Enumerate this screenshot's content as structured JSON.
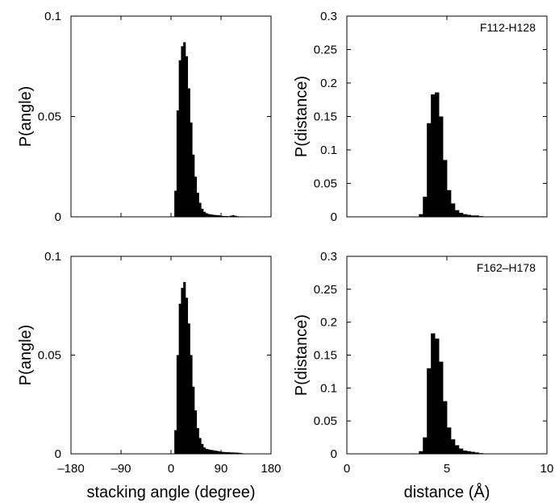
{
  "chart_data": [
    {
      "type": "bar",
      "panel": "top-left",
      "title": "",
      "annotation": "",
      "xlabel": "",
      "ylabel": "P(angle)",
      "xlim": [
        -180,
        180
      ],
      "ylim": [
        0,
        0.1
      ],
      "xticks": [],
      "yticks": [
        0,
        0.05,
        0.1
      ],
      "ytick_labels": [
        "0",
        "0.05",
        "0.1"
      ],
      "bin_width": 4,
      "x": [
        8,
        12,
        16,
        20,
        24,
        28,
        32,
        36,
        40,
        44,
        48,
        52,
        56,
        60,
        64,
        68,
        72,
        76,
        80,
        84,
        88,
        92,
        96,
        100,
        104,
        108,
        112,
        116,
        120,
        124,
        128
      ],
      "values": [
        0.013,
        0.053,
        0.078,
        0.085,
        0.087,
        0.08,
        0.064,
        0.047,
        0.031,
        0.02,
        0.012,
        0.007,
        0.004,
        0.0025,
        0.0018,
        0.0014,
        0.0012,
        0.001,
        0.0009,
        0.0008,
        0.0007,
        0.0005,
        0.0004,
        0.0004,
        0.0003,
        0.0006,
        0.0008,
        0.0005,
        0.0003,
        0.0002,
        0.0001
      ]
    },
    {
      "type": "bar",
      "panel": "top-right",
      "title": "",
      "annotation": "F112-H128",
      "xlabel": "",
      "ylabel": "P(distance)",
      "xlim": [
        0,
        10
      ],
      "ylim": [
        0,
        0.3
      ],
      "xticks": [],
      "yticks": [
        0,
        0.05,
        0.1,
        0.15,
        0.2,
        0.25,
        0.3
      ],
      "ytick_labels": [
        "0",
        "0.05",
        "0.1",
        "0.15",
        "0.2",
        "0.25",
        "0.3"
      ],
      "bin_width": 0.2,
      "x": [
        3.7,
        3.9,
        4.1,
        4.3,
        4.5,
        4.7,
        4.9,
        5.1,
        5.3,
        5.5,
        5.7,
        5.9,
        6.1,
        6.3,
        6.5,
        6.7
      ],
      "values": [
        0.004,
        0.03,
        0.14,
        0.183,
        0.186,
        0.15,
        0.085,
        0.04,
        0.02,
        0.01,
        0.006,
        0.004,
        0.003,
        0.002,
        0.002,
        0.001
      ]
    },
    {
      "type": "bar",
      "panel": "bottom-left",
      "title": "",
      "annotation": "",
      "xlabel": "stacking angle (degree)",
      "ylabel": "P(angle)",
      "xlim": [
        -180,
        180
      ],
      "ylim": [
        0,
        0.1
      ],
      "xticks": [
        -180,
        -90,
        0,
        90,
        180
      ],
      "xtick_labels": [
        "–180",
        "–90",
        "0",
        "90",
        "180"
      ],
      "yticks": [
        0,
        0.05,
        0.1
      ],
      "ytick_labels": [
        "0",
        "0.05",
        "0.1"
      ],
      "bin_width": 4,
      "x": [
        8,
        12,
        16,
        20,
        24,
        28,
        32,
        36,
        40,
        44,
        48,
        52,
        56,
        60,
        64,
        68,
        72,
        76,
        80,
        84,
        88,
        92,
        96,
        100,
        104,
        108,
        112,
        116,
        120,
        124,
        128
      ],
      "values": [
        0.012,
        0.05,
        0.076,
        0.084,
        0.087,
        0.079,
        0.066,
        0.05,
        0.034,
        0.022,
        0.013,
        0.008,
        0.005,
        0.0032,
        0.0025,
        0.0022,
        0.002,
        0.0018,
        0.0016,
        0.0014,
        0.0012,
        0.001,
        0.0009,
        0.0008,
        0.0008,
        0.0007,
        0.0007,
        0.0006,
        0.0006,
        0.0005,
        0.0003
      ]
    },
    {
      "type": "bar",
      "panel": "bottom-right",
      "title": "",
      "annotation": "F162–H178",
      "xlabel": "distance (Å)",
      "ylabel": "P(distance)",
      "xlim": [
        0,
        10
      ],
      "ylim": [
        0,
        0.3
      ],
      "xticks": [
        0,
        5,
        10
      ],
      "xtick_labels": [
        "0",
        "5",
        "10"
      ],
      "yticks": [
        0,
        0.05,
        0.1,
        0.15,
        0.2,
        0.25,
        0.3
      ],
      "ytick_labels": [
        "0",
        "0.05",
        "0.1",
        "0.15",
        "0.2",
        "0.25",
        "0.3"
      ],
      "bin_width": 0.2,
      "x": [
        3.7,
        3.9,
        4.1,
        4.3,
        4.5,
        4.7,
        4.9,
        5.1,
        5.3,
        5.5,
        5.7,
        5.9,
        6.1,
        6.3,
        6.5,
        6.7
      ],
      "values": [
        0.004,
        0.025,
        0.13,
        0.183,
        0.175,
        0.14,
        0.08,
        0.04,
        0.022,
        0.013,
        0.008,
        0.005,
        0.004,
        0.003,
        0.002,
        0.001
      ]
    }
  ]
}
